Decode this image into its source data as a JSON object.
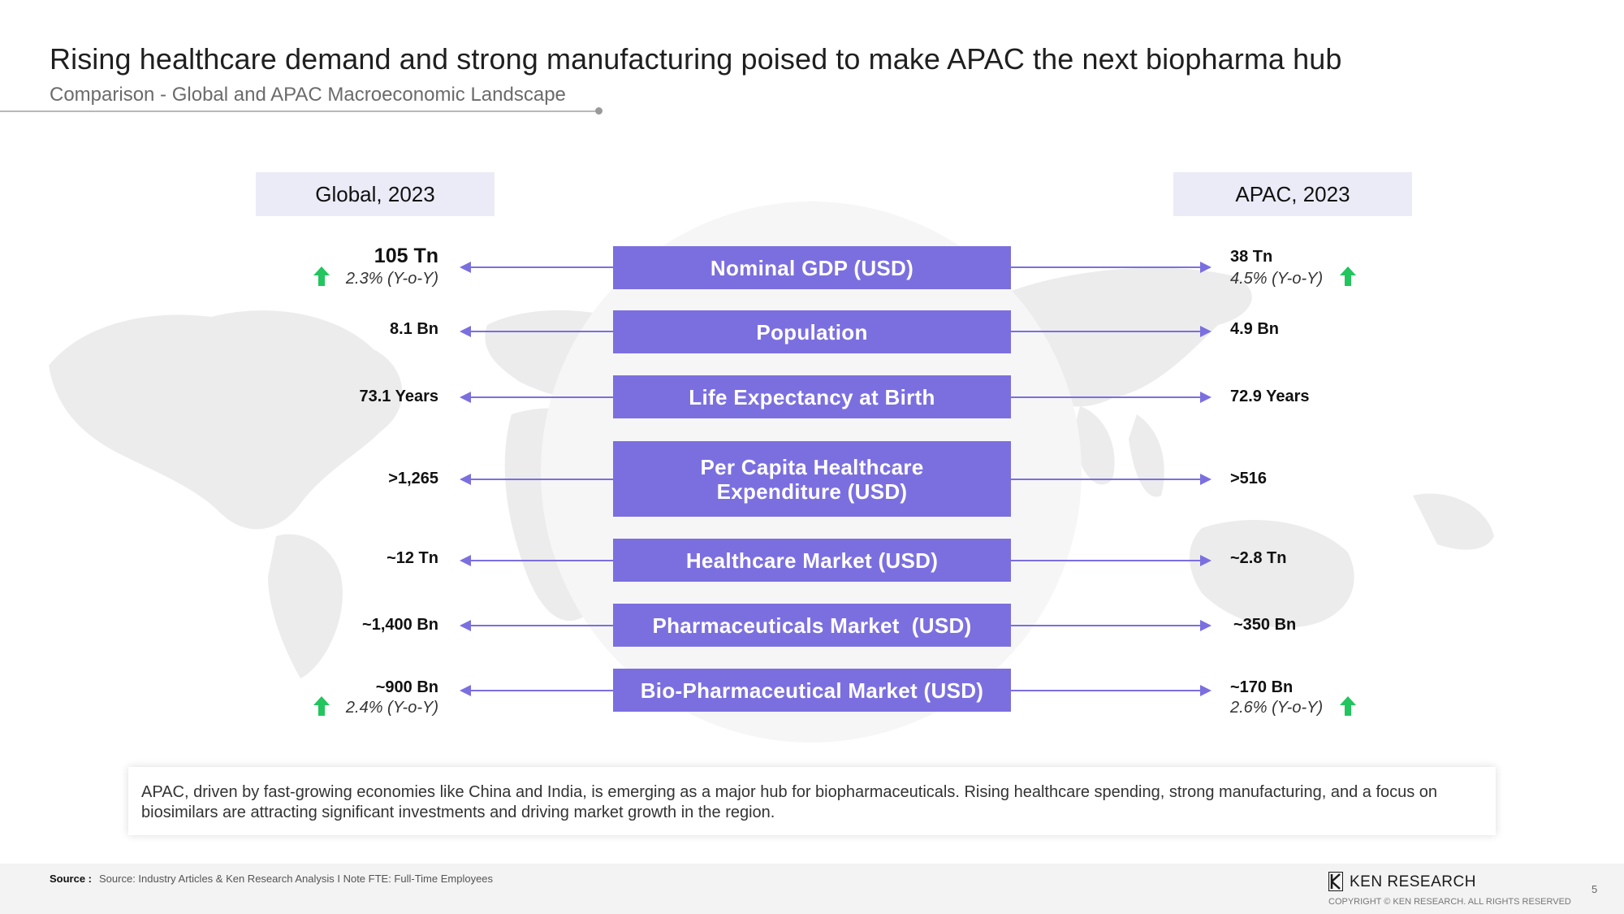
{
  "header": {
    "title": "Rising healthcare demand and strong manufacturing poised to make APAC the next biopharma hub",
    "subtitle": "Comparison - Global and APAC Macroeconomic Landscape"
  },
  "columns": {
    "left_title": "Global, 2023",
    "right_title": "APAC, 2023"
  },
  "metrics": [
    {
      "label": "Nominal GDP (USD)",
      "global": "105 Tn",
      "global_yoy": "2.3% (Y-o-Y)",
      "apac": "38 Tn",
      "apac_yoy": "4.5% (Y-o-Y)"
    },
    {
      "label": "Population",
      "global": "8.1 Bn",
      "apac": "4.9 Bn"
    },
    {
      "label": "Life Expectancy at Birth",
      "global": "73.1 Years",
      "apac": "72.9 Years"
    },
    {
      "label_line1": "Per Capita Healthcare",
      "label_line2": "Expenditure (USD)",
      "global": ">1,265",
      "apac": ">516"
    },
    {
      "label": "Healthcare Market (USD)",
      "global": "~12 Tn",
      "apac": "~2.8 Tn"
    },
    {
      "label": "Pharmaceuticals Market  (USD)",
      "global": "~1,400 Bn",
      "apac": "~350 Bn"
    },
    {
      "label": "Bio-Pharmaceutical Market (USD)",
      "global": "~900 Bn",
      "global_yoy": "2.4% (Y-o-Y)",
      "apac": "~170 Bn",
      "apac_yoy": "2.6% (Y-o-Y)"
    }
  ],
  "note": "APAC, driven by fast-growing economies like China and India, is emerging as a major hub for biopharmaceuticals. Rising healthcare spending, strong manufacturing, and a focus on biosimilars are attracting significant investments and driving market growth in the region.",
  "footer": {
    "source_label": "Source :",
    "source_text": "Source: Industry Articles & Ken Research Analysis I Note FTE: Full-Time Employees",
    "brand": "KEN RESEARCH",
    "copyright": "COPYRIGHT © KEN RESEARCH. ALL RIGHTS RESERVED",
    "page_number": "5"
  },
  "colors": {
    "accent": "#7b6fe0",
    "up_arrow": "#22c55e",
    "header_box": "#ebebf8"
  },
  "icons": {
    "trend": "up-arrow-icon",
    "connector": "arrow-icon"
  }
}
